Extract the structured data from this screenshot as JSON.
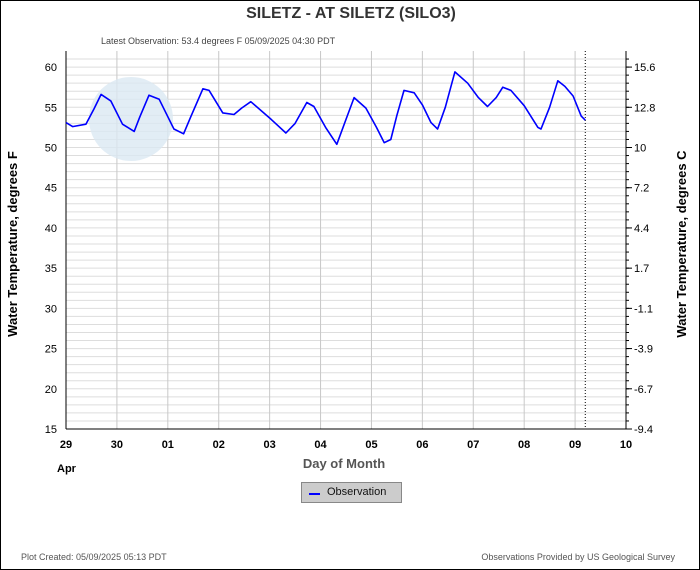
{
  "chart_data": {
    "type": "line",
    "title": "SILETZ - AT SILETZ  (SILO3)",
    "subtitle": "Latest Observation: 53.4 degrees F 05/09/2025 04:30 PDT",
    "xlabel": "Day of Month",
    "ylabel": "Water Temperature, degrees F",
    "ylabel_right": "Water Temperature, degrees C",
    "x_month_label": "Apr",
    "x_tick_labels": [
      "29",
      "30",
      "01",
      "02",
      "03",
      "04",
      "05",
      "06",
      "07",
      "08",
      "09",
      "10"
    ],
    "xlim": [
      0,
      11
    ],
    "ylim": [
      15,
      62
    ],
    "y_ticks": [
      15,
      20,
      25,
      30,
      35,
      40,
      45,
      50,
      55,
      60
    ],
    "y_ticks_right": [
      {
        "f": 60,
        "label": "15.6"
      },
      {
        "f": 55,
        "label": "12.8"
      },
      {
        "f": 50,
        "label": "10"
      },
      {
        "f": 45,
        "label": "7.2"
      },
      {
        "f": 40,
        "label": "4.4"
      },
      {
        "f": 35,
        "label": "1.7"
      },
      {
        "f": 30,
        "label": "-1.1"
      },
      {
        "f": 25,
        "label": "-3.9"
      },
      {
        "f": 20,
        "label": "-6.7"
      },
      {
        "f": 15,
        "label": "-9.4"
      }
    ],
    "grid": true,
    "latest_marker_x": 10.2,
    "legend": {
      "position": "bottom-center",
      "entries": [
        "Observation"
      ]
    },
    "series": [
      {
        "name": "Observation",
        "color": "#0000ff",
        "x": [
          0,
          0.13,
          0.39,
          0.55,
          0.69,
          0.88,
          1.11,
          1.34,
          1.45,
          1.63,
          1.83,
          2.12,
          2.31,
          2.45,
          2.69,
          2.81,
          3.08,
          3.3,
          3.45,
          3.63,
          4.03,
          4.32,
          4.5,
          4.73,
          4.87,
          5.1,
          5.32,
          5.5,
          5.66,
          5.89,
          6.1,
          6.25,
          6.38,
          6.5,
          6.64,
          6.84,
          7.0,
          7.17,
          7.3,
          7.45,
          7.64,
          7.89,
          8.1,
          8.28,
          8.45,
          8.58,
          8.74,
          9.0,
          9.27,
          9.33,
          9.5,
          9.66,
          9.8,
          9.96,
          10.12,
          10.2
        ],
        "y": [
          53.1,
          52.6,
          52.9,
          54.8,
          56.6,
          55.8,
          52.9,
          52.0,
          53.8,
          56.5,
          56.0,
          52.3,
          51.7,
          53.8,
          57.3,
          57.1,
          54.3,
          54.1,
          54.9,
          55.7,
          53.5,
          51.8,
          53.0,
          55.6,
          55.1,
          52.5,
          50.4,
          53.5,
          56.2,
          54.9,
          52.5,
          50.6,
          51.0,
          54.0,
          57.1,
          56.8,
          55.3,
          53.1,
          52.3,
          55.0,
          59.4,
          58.0,
          56.2,
          55.1,
          56.2,
          57.5,
          57.1,
          55.2,
          52.5,
          52.3,
          55.0,
          58.3,
          57.6,
          56.4,
          53.9,
          53.4
        ]
      }
    ]
  },
  "footer": {
    "plot_created": "Plot Created: 05/09/2025 05:13 PDT",
    "provided_by": "Observations Provided by US Geological Survey"
  }
}
